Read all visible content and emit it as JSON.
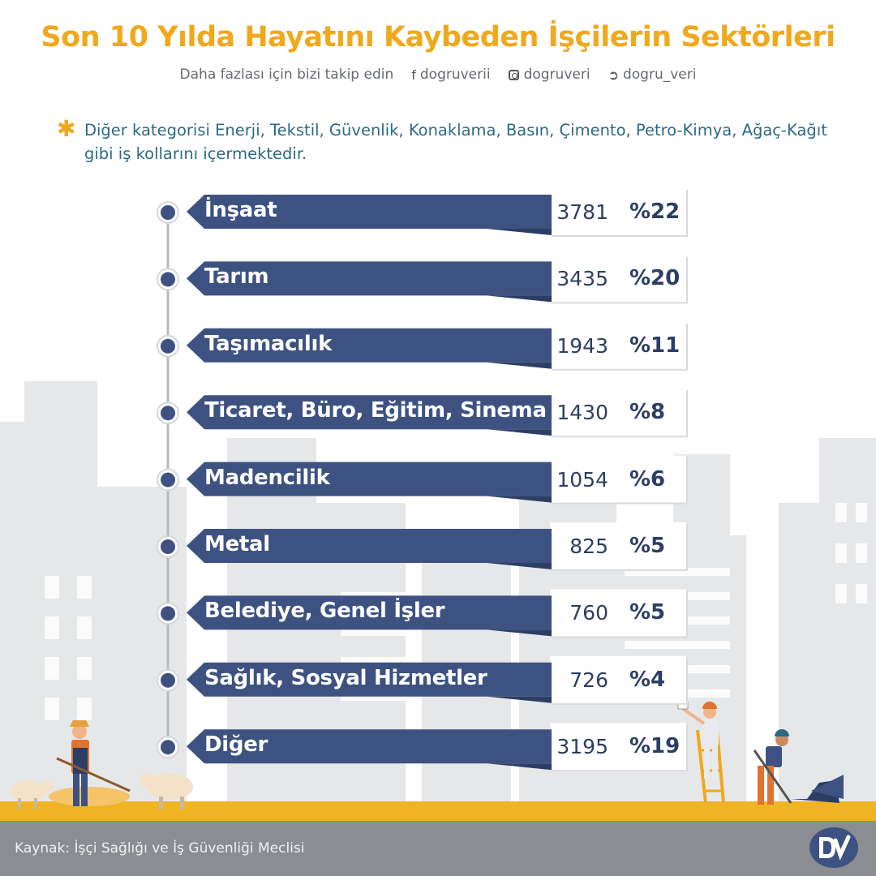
{
  "title": "Son 10 Yılda Hayatını Kaybeden İşçilerin Sektörleri",
  "follow": {
    "text": "Daha fazlası için bizi takip edin",
    "facebook": "dogruverii",
    "instagram": "dogruveri",
    "twitter": "dogru_veri",
    "facebook_icon": "facebook-icon",
    "instagram_icon": "instagram-icon",
    "twitter_icon": "twitter-icon"
  },
  "note": {
    "marker": "✱",
    "text": "Diğer kategorisi Enerji, Tekstil, Güvenlik, Konaklama, Basın, Çimento, Petro-Kimya, Ağaç-Kağıt gibi iş kollarını içermektedir."
  },
  "source": "Kaynak: İşçi Sağlığı ve İş Güvenliği Meclisi",
  "colors": {
    "title": "#f0a81c",
    "bar": "#3d5281",
    "bar_dark": "#2c3e63",
    "value_box": "#ffffff",
    "timeline_dot": "#3d5281",
    "ground": "#f0b323",
    "buildings": "#e6e7e9",
    "footer": "#8a8d91"
  },
  "chart_data": {
    "type": "bar",
    "orientation": "horizontal",
    "categories": [
      "İnşaat",
      "Tarım",
      "Taşımacılık",
      "Ticaret, Büro, Eğitim, Sinema",
      "Madencilik",
      "Metal",
      "Belediye, Genel İşler",
      "Sağlık, Sosyal Hizmetler",
      "Diğer"
    ],
    "values": [
      3781,
      3435,
      1943,
      1430,
      1054,
      825,
      760,
      726,
      3195
    ],
    "percent_labels": [
      "%22",
      "%20",
      "%11",
      "%8",
      "%6",
      "%5",
      "%5",
      "%4",
      "%19"
    ],
    "title": "Son 10 Yılda Hayatını Kaybeden İşçilerin Sektörleri",
    "xlabel": "",
    "ylabel": "",
    "grid": false,
    "legend": "none"
  }
}
